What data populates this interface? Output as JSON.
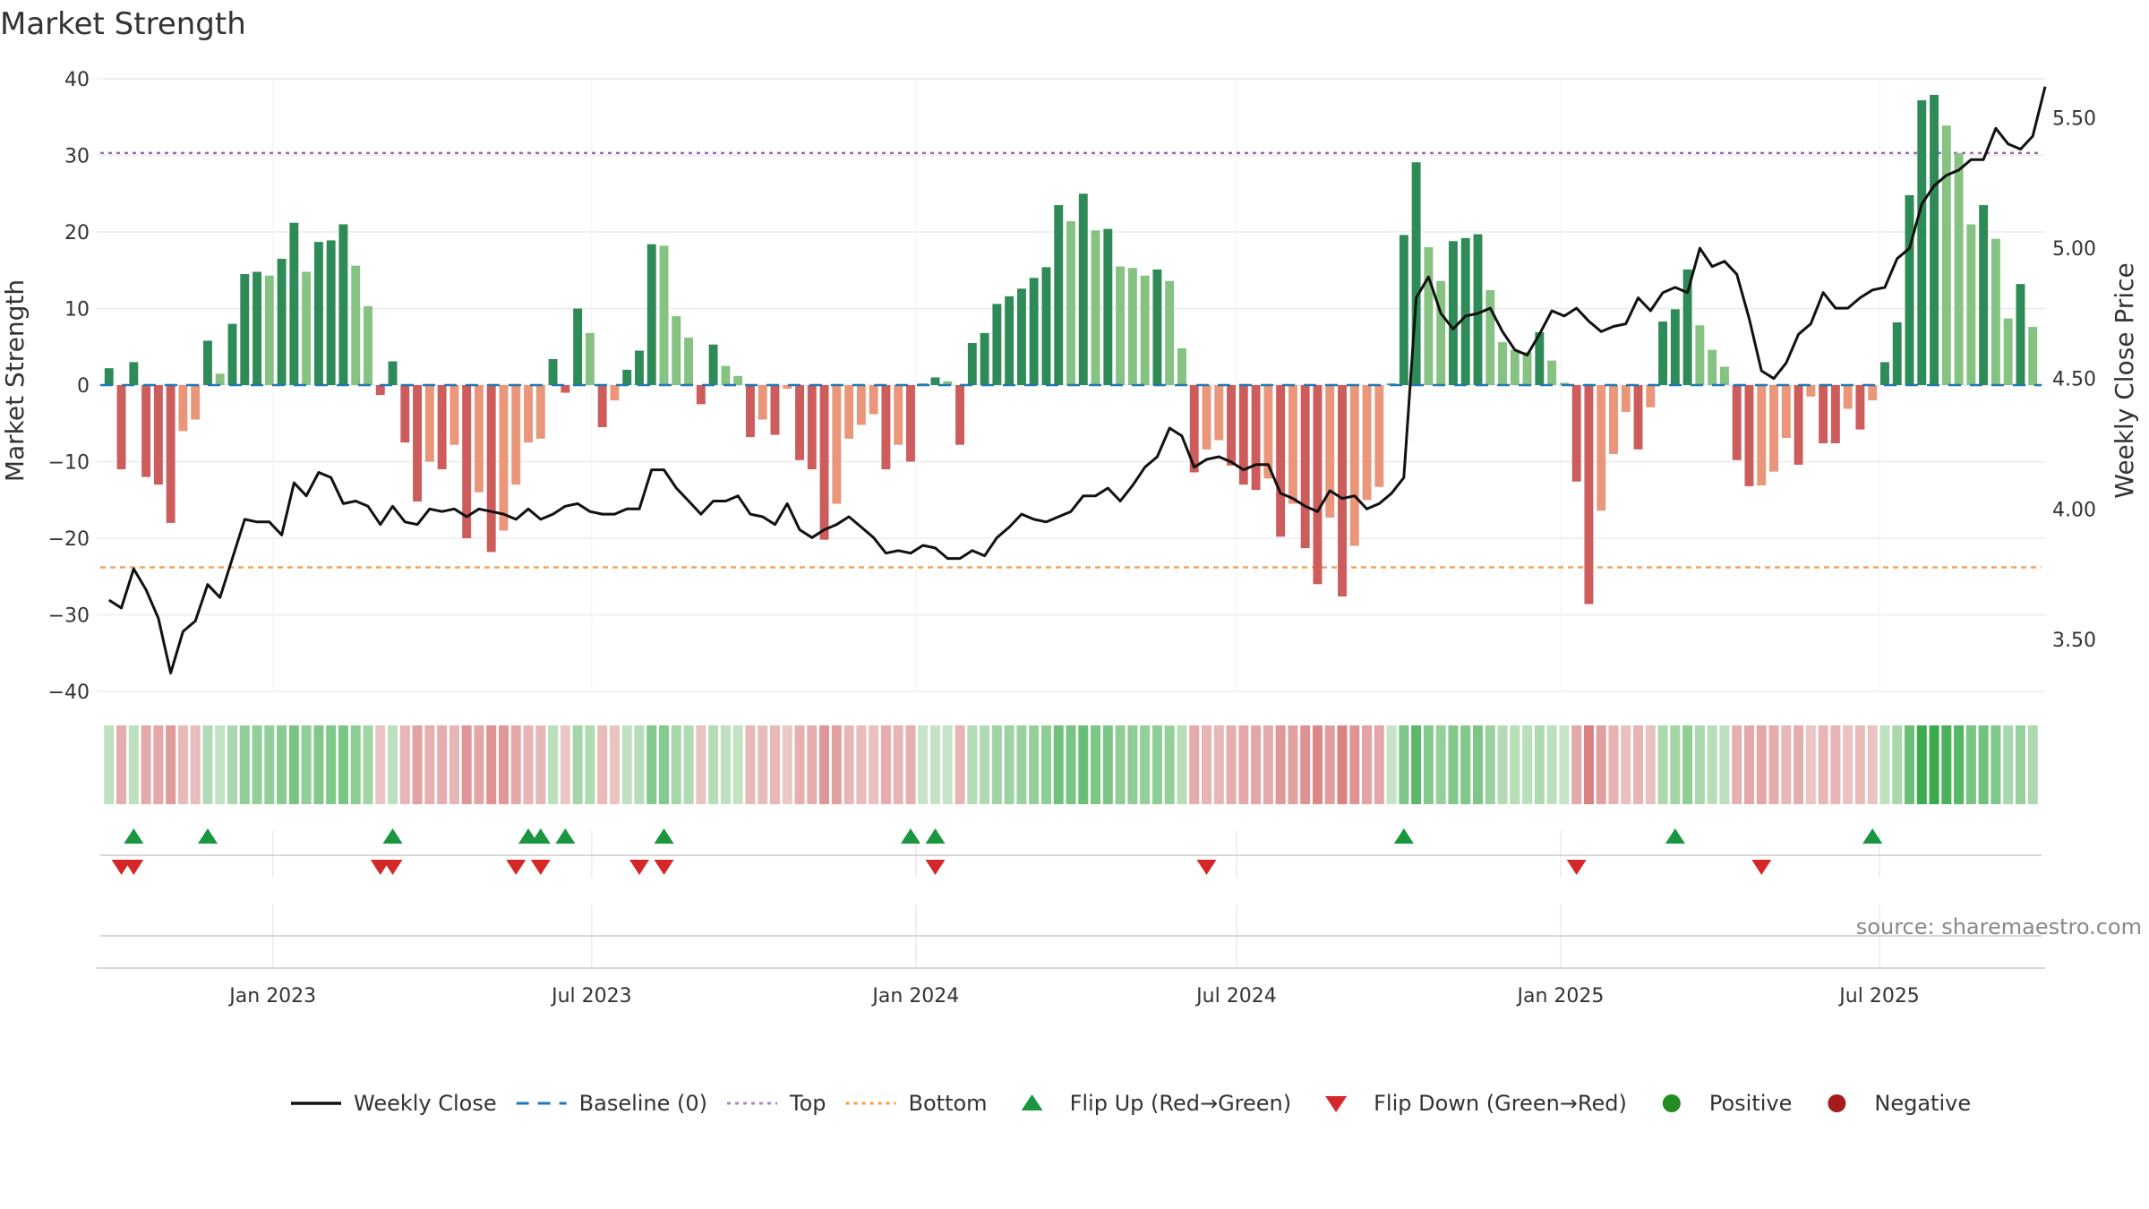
{
  "chart_data": {
    "type": "bar",
    "title": "Market Strength",
    "ylabel": "Market Strength",
    "y2label": "Weekly Close Price",
    "ylim": [
      -40,
      40
    ],
    "y2lim": [
      3.3,
      5.65
    ],
    "yticks": [
      40,
      30,
      20,
      10,
      0,
      -10,
      -20,
      -30,
      -40
    ],
    "ytick_labels": [
      "40",
      "30",
      "20",
      "10",
      "0",
      "−10",
      "−20",
      "−30",
      "−40"
    ],
    "y2ticks": [
      5.5,
      5.0,
      4.5,
      4.0,
      3.5
    ],
    "y2tick_labels": [
      "5.50",
      "5.00",
      "4.50",
      "4.00",
      "3.50"
    ],
    "x_start": "2022-09-30",
    "x_end": "2025-09-26",
    "x_pad_days": 7,
    "xticks": [
      {
        "date": "2023-01-01",
        "label": "Jan 2023"
      },
      {
        "date": "2023-07-01",
        "label": "Jul 2023"
      },
      {
        "date": "2024-01-01",
        "label": "Jan 2024"
      },
      {
        "date": "2024-07-01",
        "label": "Jul 2024"
      },
      {
        "date": "2025-01-01",
        "label": "Jan 2025"
      },
      {
        "date": "2025-07-01",
        "label": "Jul 2025"
      }
    ],
    "top_line": 30.3,
    "bottom_line": -23.8,
    "strength": [
      2.2,
      -11,
      3,
      -12,
      -13,
      -18,
      -6,
      -4.5,
      5.8,
      1.5,
      8,
      14.5,
      14.8,
      14.3,
      16.5,
      21.2,
      14.8,
      18.7,
      18.9,
      21,
      15.6,
      10.3,
      -1.3,
      3.1,
      -7.5,
      -15.2,
      -10,
      -11,
      -7.8,
      -20,
      -14,
      -21.8,
      -19,
      -13,
      -7.5,
      -7,
      3.4,
      -1,
      10,
      6.8,
      -5.5,
      -2,
      2,
      4.5,
      18.4,
      18.2,
      9,
      6.2,
      -2.5,
      5.3,
      2.5,
      1.2,
      -6.8,
      -4.5,
      -6.5,
      -0.5,
      -9.8,
      -11,
      -20.2,
      -15.5,
      -7,
      -5.2,
      -3.8,
      -11,
      -7.8,
      -10,
      0.2,
      1,
      0.5,
      -7.8,
      5.5,
      6.8,
      10.6,
      11.6,
      12.6,
      14,
      15.4,
      23.5,
      21.4,
      25,
      20.2,
      20.4,
      15.5,
      15.3,
      14.3,
      15.1,
      13.6,
      4.8,
      -11.4,
      -8.4,
      -7.2,
      -10.5,
      -13,
      -13.7,
      -12.2,
      -19.8,
      -15.5,
      -21.3,
      -26,
      -17.3,
      -27.6,
      -21,
      -15,
      -13.3,
      0.2,
      19.6,
      29.1,
      18,
      13.6,
      18.8,
      19.2,
      19.7,
      12.4,
      5.6,
      4.6,
      4.3,
      6.9,
      3.2,
      0.3,
      -12.6,
      -28.6,
      -16.4,
      -9,
      -3.5,
      -8.4,
      -2.9,
      8.3,
      9.9,
      15.1,
      7.8,
      4.6,
      2.4,
      -9.8,
      -13.2,
      -13.1,
      -11.3,
      -6.9,
      -10.4,
      -1.5,
      -7.6,
      -7.6,
      -3.1,
      -5.8,
      -2,
      3,
      8.2,
      24.8,
      37.2,
      37.9,
      33.9,
      30.3,
      21,
      23.5,
      19.1,
      8.7,
      13.2,
      7.6
    ],
    "close": [
      3.65,
      3.62,
      3.77,
      3.69,
      3.58,
      3.37,
      3.53,
      3.57,
      3.71,
      3.66,
      3.81,
      3.96,
      3.95,
      3.95,
      3.9,
      4.1,
      4.05,
      4.14,
      4.12,
      4.02,
      4.03,
      4.01,
      3.94,
      4.01,
      3.95,
      3.94,
      4.0,
      3.99,
      4.0,
      3.97,
      4.0,
      3.99,
      3.98,
      3.96,
      4.0,
      3.96,
      3.98,
      4.01,
      4.02,
      3.99,
      3.98,
      3.98,
      4.0,
      4.0,
      4.15,
      4.15,
      4.08,
      4.03,
      3.98,
      4.03,
      4.03,
      4.05,
      3.98,
      3.97,
      3.94,
      4.02,
      3.92,
      3.89,
      3.92,
      3.94,
      3.97,
      3.93,
      3.89,
      3.83,
      3.84,
      3.83,
      3.86,
      3.85,
      3.81,
      3.81,
      3.84,
      3.82,
      3.89,
      3.93,
      3.98,
      3.96,
      3.95,
      3.97,
      3.99,
      4.05,
      4.05,
      4.08,
      4.03,
      4.09,
      4.16,
      4.2,
      4.31,
      4.28,
      4.16,
      4.19,
      4.2,
      4.18,
      4.15,
      4.17,
      4.17,
      4.06,
      4.04,
      4.01,
      3.99,
      4.07,
      4.04,
      4.05,
      4.0,
      4.02,
      4.06,
      4.12,
      4.81,
      4.89,
      4.75,
      4.69,
      4.74,
      4.75,
      4.77,
      4.68,
      4.61,
      4.59,
      4.67,
      4.76,
      4.74,
      4.77,
      4.72,
      4.68,
      4.7,
      4.71,
      4.81,
      4.76,
      4.83,
      4.85,
      4.83,
      5.0,
      4.93,
      4.95,
      4.9,
      4.73,
      4.53,
      4.5,
      4.56,
      4.67,
      4.71,
      4.83,
      4.77,
      4.77,
      4.81,
      4.84,
      4.85,
      4.96,
      5.0,
      5.17,
      5.24,
      5.28,
      5.3,
      5.34,
      5.34,
      5.46,
      5.4,
      5.38,
      5.43,
      5.62
    ],
    "heat_strip": "color-coded strip of strength per week (green = positive, red = negative)",
    "flip_up": [
      "2022-10-14",
      "2022-11-25",
      "2023-03-10",
      "2023-05-26",
      "2023-06-02",
      "2023-06-16",
      "2023-08-11",
      "2023-12-29",
      "2024-01-12",
      "2024-10-04",
      "2025-03-07",
      "2025-06-27"
    ],
    "flip_down": [
      "2022-10-07",
      "2022-10-14",
      "2023-03-03",
      "2023-03-10",
      "2023-05-19",
      "2023-06-02",
      "2023-07-28",
      "2023-08-11",
      "2024-01-12",
      "2024-06-14",
      "2025-01-10",
      "2025-04-25"
    ],
    "legend": [
      {
        "label": "Weekly Close",
        "kind": "solid",
        "color": "#111111"
      },
      {
        "label": "Baseline (0)",
        "kind": "dash",
        "color": "#1f77b4"
      },
      {
        "label": "Top",
        "kind": "dot",
        "color": "#9467bd"
      },
      {
        "label": "Bottom",
        "kind": "dot",
        "color": "#ff7f0e"
      },
      {
        "label": "Flip Up (Red→Green)",
        "kind": "up",
        "color": "#1a9641"
      },
      {
        "label": "Flip Down (Green→Red)",
        "kind": "down",
        "color": "#d62728"
      },
      {
        "label": "Positive",
        "kind": "circle",
        "color": "#228b22"
      },
      {
        "label": "Negative",
        "kind": "circle",
        "color": "#a61c1c"
      }
    ],
    "source": "source: sharemaestro.com",
    "colors": {
      "pos_rising": "#2e8b57",
      "pos_falling": "#86c282",
      "neg_falling": "#cd5c5c",
      "neg_rising": "#e9967a",
      "close_line": "#111111",
      "baseline": "#1f77b4",
      "top": "#9467bd",
      "bottom": "#f4a460",
      "flip_up": "#1a9641",
      "flip_down": "#d62728"
    }
  }
}
